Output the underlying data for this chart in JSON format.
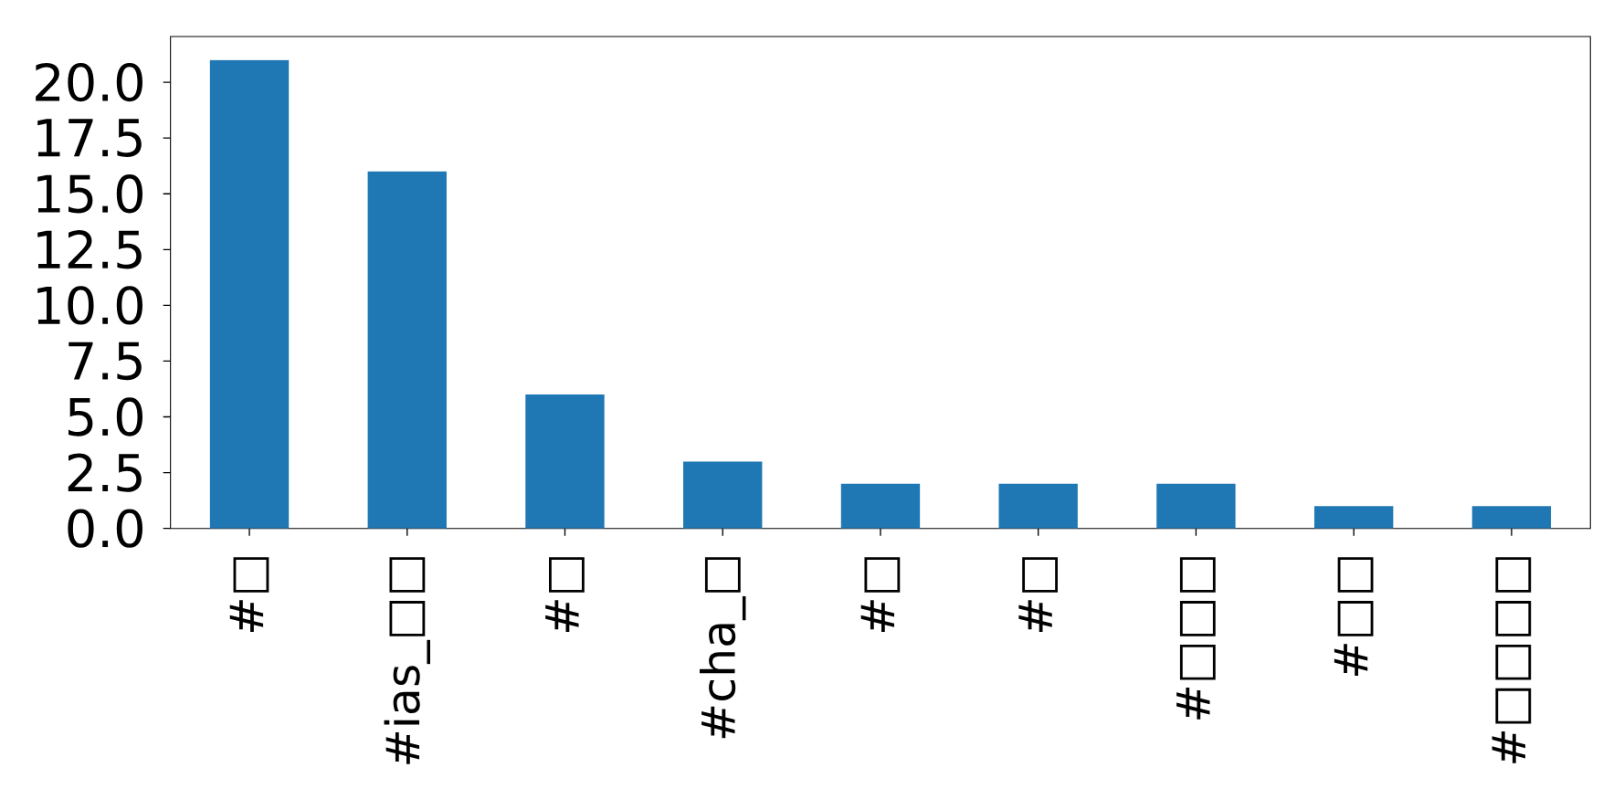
{
  "chart_data": {
    "type": "bar",
    "categories": [
      "#□",
      "#ias_□□",
      "#□",
      "#cha_□",
      "#□",
      "#□",
      "#□□□",
      "#□□",
      "#□□□□"
    ],
    "values": [
      21,
      16,
      6,
      3,
      2,
      2,
      2,
      1,
      1
    ],
    "color": "#1f77b4",
    "ylim": [
      0,
      22.05
    ],
    "yticks": [
      {
        "value": 0,
        "label": "0.0"
      },
      {
        "value": 2.5,
        "label": "2.5"
      },
      {
        "value": 5,
        "label": "5.0"
      },
      {
        "value": 7.5,
        "label": "7.5"
      },
      {
        "value": 10,
        "label": "10.0"
      },
      {
        "value": 12.5,
        "label": "12.5"
      },
      {
        "value": 15,
        "label": "15.0"
      },
      {
        "value": 17.5,
        "label": "17.5"
      },
      {
        "value": 20,
        "label": "20.0"
      }
    ],
    "grid": false
  }
}
